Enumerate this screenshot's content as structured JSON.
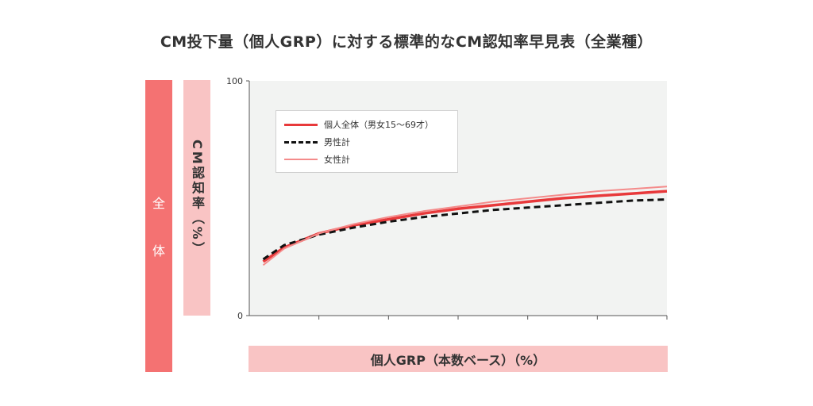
{
  "chart_data": {
    "type": "line",
    "title": "CM投下量（個人GRP）に対する標準的なCM認知率早見表（全業種）",
    "side_label": "全体",
    "side_label_chars": [
      "全",
      "体"
    ],
    "ylabel": "CM認知率（%）",
    "xlabel": "個人GRP（本数ベース）（%）",
    "ylim": [
      0,
      100
    ],
    "xlim": [
      0,
      6
    ],
    "y_ticks": [
      {
        "value": 0,
        "label": "0"
      },
      {
        "value": 100,
        "label": "100"
      }
    ],
    "x_ticks": [
      1,
      2,
      3,
      4,
      5,
      6
    ],
    "grid": false,
    "legend_position": "top-left",
    "series": [
      {
        "name": "個人全体（男女15〜69才）",
        "color": "#e8393b",
        "style": "solid",
        "x": [
          0.2,
          0.5,
          1.0,
          1.5,
          2.0,
          2.5,
          3.0,
          3.5,
          4.0,
          4.5,
          5.0,
          5.5,
          6.0
        ],
        "y": [
          23,
          29,
          35,
          38.5,
          41,
          43.5,
          45.5,
          47,
          48.5,
          50,
          51,
          52,
          53
        ]
      },
      {
        "name": "男性計",
        "color": "#111111",
        "style": "dashed",
        "x": [
          0.2,
          0.5,
          1.0,
          1.5,
          2.0,
          2.5,
          3.0,
          3.5,
          4.0,
          4.5,
          5.0,
          5.5,
          6.0
        ],
        "y": [
          24,
          30,
          34.5,
          37.5,
          40,
          42,
          43.5,
          45,
          46,
          47,
          48,
          49,
          49.5
        ]
      },
      {
        "name": "女性計",
        "color": "#f48b8b",
        "style": "solid",
        "x": [
          0.2,
          0.5,
          1.0,
          1.5,
          2.0,
          2.5,
          3.0,
          3.5,
          4.0,
          4.5,
          5.0,
          5.5,
          6.0
        ],
        "y": [
          21.5,
          28.5,
          35,
          39,
          42,
          44.5,
          46.5,
          48.5,
          50,
          51.5,
          53,
          54,
          55
        ]
      }
    ]
  }
}
